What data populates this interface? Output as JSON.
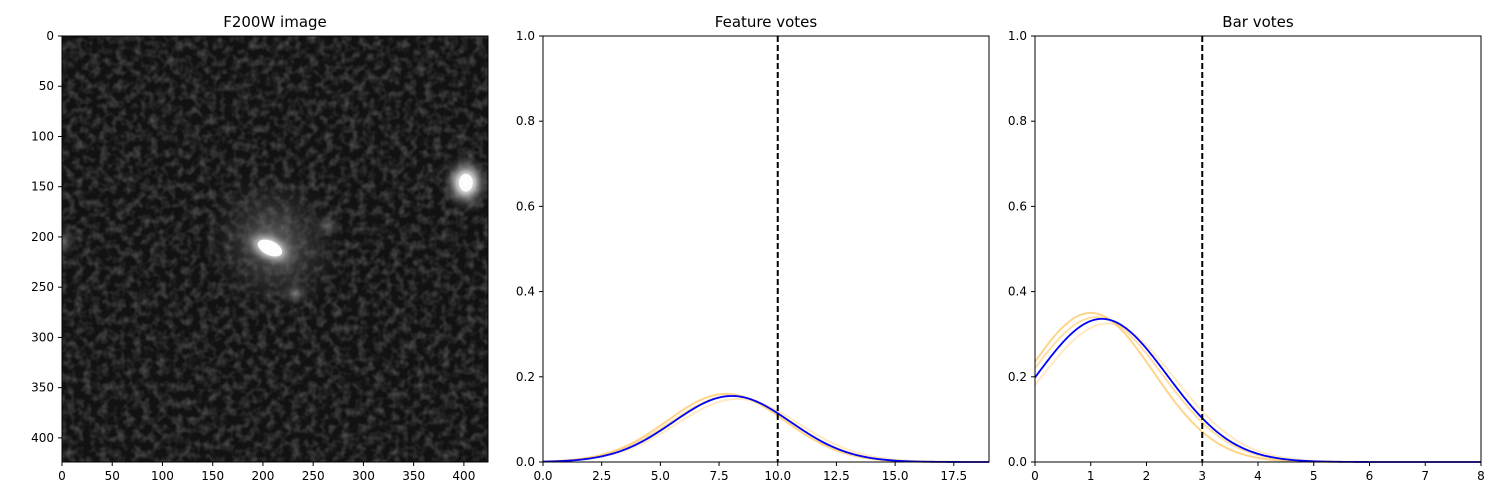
{
  "chart_data": [
    {
      "type": "heatmap",
      "title": "F200W image",
      "xlabel": "",
      "ylabel": "",
      "xlim": [
        0,
        424
      ],
      "ylim": [
        424,
        0
      ],
      "xticks": [
        0,
        50,
        100,
        150,
        200,
        250,
        300,
        350,
        400
      ],
      "yticks": [
        0,
        50,
        100,
        150,
        200,
        250,
        300,
        350,
        400
      ],
      "colormap": "gray",
      "sources": [
        {
          "x": 207,
          "y": 211,
          "brightness": 1.0,
          "shape": "elongated core with diffuse halo"
        },
        {
          "x": 402,
          "y": 146,
          "brightness": 0.9,
          "shape": "compact"
        },
        {
          "x": 232,
          "y": 256,
          "brightness": 0.3,
          "shape": "faint extension"
        },
        {
          "x": 264,
          "y": 189,
          "brightness": 0.25,
          "shape": "faint extension"
        }
      ]
    },
    {
      "type": "line",
      "title": "Feature votes",
      "xlabel": "",
      "ylabel": "",
      "xlim": [
        0,
        19
      ],
      "ylim": [
        0,
        1.0
      ],
      "xticks": [
        0.0,
        2.5,
        5.0,
        7.5,
        10.0,
        12.5,
        15.0,
        17.5
      ],
      "yticks": [
        0.0,
        0.2,
        0.4,
        0.6,
        0.8,
        1.0
      ],
      "vline": 10,
      "vline_style": "dashed",
      "series": [
        {
          "color": "#ffc25a",
          "opacity": 0.35,
          "model": "gaussian",
          "mu": 8.3,
          "sigma": 2.6,
          "peak": 0.148
        },
        {
          "color": "#ffc25a",
          "opacity": 0.55,
          "model": "gaussian",
          "mu": 8.0,
          "sigma": 2.55,
          "peak": 0.155
        },
        {
          "color": "#ffc25a",
          "opacity": 0.7,
          "model": "gaussian",
          "mu": 7.8,
          "sigma": 2.5,
          "peak": 0.16
        },
        {
          "color": "#0000ff",
          "opacity": 1.0,
          "model": "gaussian",
          "mu": 8.05,
          "sigma": 2.5,
          "peak": 0.155
        }
      ]
    },
    {
      "type": "line",
      "title": "Bar votes",
      "xlabel": "",
      "ylabel": "",
      "xlim": [
        0,
        8
      ],
      "ylim": [
        0,
        1.0
      ],
      "xticks": [
        0,
        1,
        2,
        3,
        4,
        5,
        6,
        7,
        8
      ],
      "yticks": [
        0.0,
        0.2,
        0.4,
        0.6,
        0.8,
        1.0
      ],
      "vline": 3,
      "vline_style": "dashed",
      "series": [
        {
          "color": "#ffc25a",
          "opacity": 0.35,
          "model": "gaussian",
          "mu": 1.3,
          "sigma": 1.2,
          "peak": 0.325
        },
        {
          "color": "#ffc25a",
          "opacity": 0.55,
          "model": "gaussian",
          "mu": 1.1,
          "sigma": 1.18,
          "peak": 0.34
        },
        {
          "color": "#ffc25a",
          "opacity": 0.7,
          "model": "gaussian",
          "mu": 1.0,
          "sigma": 1.12,
          "peak": 0.35
        },
        {
          "color": "#0000ff",
          "opacity": 1.0,
          "model": "gaussian",
          "mu": 1.2,
          "sigma": 1.17,
          "peak": 0.336
        }
      ]
    }
  ]
}
